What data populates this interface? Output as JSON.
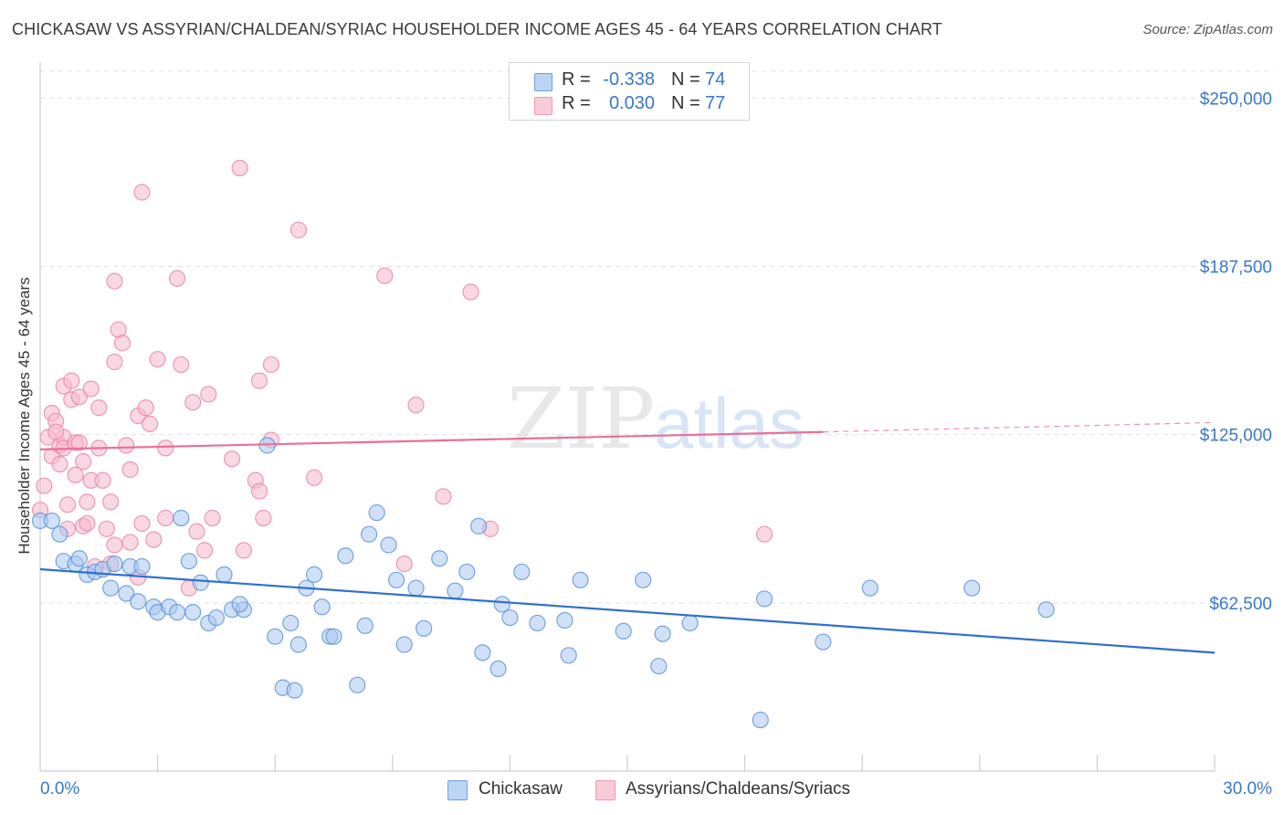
{
  "title": "CHICKASAW VS ASSYRIAN/CHALDEAN/SYRIAC HOUSEHOLDER INCOME AGES 45 - 64 YEARS CORRELATION CHART",
  "source": "Source: ZipAtlas.com",
  "watermark": {
    "zip": "ZIP",
    "atlas": "atlas"
  },
  "legend_stats": [
    {
      "r_label": "R =",
      "r_value": "-0.338",
      "n_label": "N =",
      "n_value": "74",
      "color": "#a9c8f0"
    },
    {
      "r_label": "R =",
      "r_value": "0.030",
      "n_label": "N =",
      "n_value": "77",
      "color": "#f6b8cb"
    }
  ],
  "bottom_legend": [
    {
      "label": "Chickasaw",
      "color": "#a9c8f0"
    },
    {
      "label": "Assyrians/Chaldeans/Syriacs",
      "color": "#f6b8cb"
    }
  ],
  "chart_data": {
    "type": "scatter",
    "title": "CHICKASAW VS ASSYRIAN/CHALDEAN/SYRIAC HOUSEHOLDER INCOME AGES 45 - 64 YEARS CORRELATION CHART",
    "xlabel": "",
    "ylabel": "Householder Income Ages 45 - 64 years",
    "xlim": [
      0,
      30
    ],
    "ylim": [
      0,
      262000
    ],
    "x_tick_labels": [
      "0.0%",
      "30.0%"
    ],
    "y_ticks": [
      62500,
      125000,
      187500,
      250000
    ],
    "y_tick_labels": [
      "$62,500",
      "$125,000",
      "$187,500",
      "$250,000"
    ],
    "grid": true,
    "colors": {
      "blue_fill": "#a9c8f0",
      "blue_stroke": "#5f95d8",
      "blue_line": "#2f6fcc",
      "pink_fill": "#f6b8cb",
      "pink_stroke": "#e88aa6",
      "pink_line": "#e8709a",
      "tick_text": "#3a78c9"
    },
    "series": [
      {
        "name": "Chickasaw",
        "color": "#a9c8f0",
        "trend": {
          "x": [
            0,
            30
          ],
          "y": [
            75000,
            44000
          ]
        },
        "points": [
          [
            0.0,
            93000
          ],
          [
            0.3,
            93000
          ],
          [
            0.5,
            88000
          ],
          [
            0.6,
            78000
          ],
          [
            0.9,
            77000
          ],
          [
            1.0,
            79000
          ],
          [
            1.2,
            73000
          ],
          [
            1.4,
            74000
          ],
          [
            1.6,
            75000
          ],
          [
            1.9,
            77000
          ],
          [
            1.8,
            68000
          ],
          [
            2.2,
            66000
          ],
          [
            2.3,
            76000
          ],
          [
            2.6,
            76000
          ],
          [
            2.5,
            63000
          ],
          [
            2.9,
            61000
          ],
          [
            3.0,
            59000
          ],
          [
            3.3,
            61000
          ],
          [
            3.5,
            59000
          ],
          [
            3.6,
            94000
          ],
          [
            3.8,
            78000
          ],
          [
            3.9,
            59000
          ],
          [
            4.1,
            70000
          ],
          [
            4.3,
            55000
          ],
          [
            4.5,
            57000
          ],
          [
            4.7,
            73000
          ],
          [
            4.9,
            60000
          ],
          [
            5.2,
            60000
          ],
          [
            5.1,
            62000
          ],
          [
            5.8,
            121000
          ],
          [
            6.0,
            50000
          ],
          [
            6.2,
            31000
          ],
          [
            6.4,
            55000
          ],
          [
            6.5,
            30000
          ],
          [
            6.6,
            47000
          ],
          [
            6.8,
            68000
          ],
          [
            7.0,
            73000
          ],
          [
            7.2,
            61000
          ],
          [
            7.4,
            50000
          ],
          [
            7.5,
            50000
          ],
          [
            7.8,
            80000
          ],
          [
            8.1,
            32000
          ],
          [
            8.3,
            54000
          ],
          [
            8.4,
            88000
          ],
          [
            8.6,
            96000
          ],
          [
            8.9,
            84000
          ],
          [
            9.1,
            71000
          ],
          [
            9.3,
            47000
          ],
          [
            9.6,
            68000
          ],
          [
            9.8,
            53000
          ],
          [
            10.2,
            79000
          ],
          [
            10.6,
            67000
          ],
          [
            10.9,
            74000
          ],
          [
            11.2,
            91000
          ],
          [
            11.3,
            44000
          ],
          [
            11.7,
            38000
          ],
          [
            11.8,
            62000
          ],
          [
            12.0,
            57000
          ],
          [
            12.3,
            74000
          ],
          [
            12.7,
            55000
          ],
          [
            13.4,
            56000
          ],
          [
            13.5,
            43000
          ],
          [
            13.8,
            71000
          ],
          [
            14.9,
            52000
          ],
          [
            15.4,
            71000
          ],
          [
            15.9,
            51000
          ],
          [
            15.8,
            39000
          ],
          [
            16.6,
            55000
          ],
          [
            18.5,
            64000
          ],
          [
            18.4,
            19000
          ],
          [
            20.0,
            48000
          ],
          [
            21.2,
            68000
          ],
          [
            23.8,
            68000
          ],
          [
            25.7,
            60000
          ]
        ]
      },
      {
        "name": "Assyrians/Chaldeans/Syriacs",
        "color": "#f6b8cb",
        "trend": {
          "x": [
            0,
            20
          ],
          "y": [
            119500,
            126000
          ]
        },
        "trend_dashed": {
          "x": [
            20,
            30
          ],
          "y": [
            126000,
            129500
          ]
        },
        "points": [
          [
            0.0,
            97000
          ],
          [
            0.1,
            106000
          ],
          [
            0.2,
            124000
          ],
          [
            0.3,
            117000
          ],
          [
            0.3,
            133000
          ],
          [
            0.4,
            130000
          ],
          [
            0.5,
            114000
          ],
          [
            0.5,
            121000
          ],
          [
            0.6,
            143000
          ],
          [
            0.6,
            124000
          ],
          [
            0.6,
            120000
          ],
          [
            0.7,
            99000
          ],
          [
            0.7,
            90000
          ],
          [
            0.8,
            138000
          ],
          [
            0.8,
            145000
          ],
          [
            0.9,
            110000
          ],
          [
            0.9,
            122000
          ],
          [
            1.0,
            139000
          ],
          [
            1.0,
            122000
          ],
          [
            1.1,
            91000
          ],
          [
            1.1,
            115000
          ],
          [
            1.2,
            100000
          ],
          [
            1.2,
            92000
          ],
          [
            1.3,
            108000
          ],
          [
            1.3,
            142000
          ],
          [
            1.4,
            76000
          ],
          [
            1.5,
            135000
          ],
          [
            1.5,
            120000
          ],
          [
            1.6,
            108000
          ],
          [
            1.7,
            90000
          ],
          [
            1.8,
            77000
          ],
          [
            1.8,
            100000
          ],
          [
            1.9,
            182000
          ],
          [
            1.9,
            84000
          ],
          [
            1.9,
            152000
          ],
          [
            2.0,
            164000
          ],
          [
            2.1,
            159000
          ],
          [
            2.2,
            121000
          ],
          [
            2.3,
            112000
          ],
          [
            2.3,
            85000
          ],
          [
            2.5,
            72000
          ],
          [
            2.5,
            132000
          ],
          [
            2.6,
            92000
          ],
          [
            2.6,
            215000
          ],
          [
            2.7,
            135000
          ],
          [
            2.8,
            129000
          ],
          [
            2.9,
            86000
          ],
          [
            3.0,
            153000
          ],
          [
            3.2,
            120000
          ],
          [
            3.2,
            94000
          ],
          [
            3.5,
            183000
          ],
          [
            3.6,
            151000
          ],
          [
            3.8,
            68000
          ],
          [
            3.9,
            137000
          ],
          [
            4.0,
            89000
          ],
          [
            4.2,
            82000
          ],
          [
            4.3,
            140000
          ],
          [
            4.4,
            94000
          ],
          [
            4.9,
            116000
          ],
          [
            5.1,
            224000
          ],
          [
            5.2,
            82000
          ],
          [
            5.5,
            108000
          ],
          [
            5.6,
            104000
          ],
          [
            5.6,
            145000
          ],
          [
            5.7,
            94000
          ],
          [
            5.9,
            151000
          ],
          [
            5.9,
            123000
          ],
          [
            6.6,
            201000
          ],
          [
            7.0,
            109000
          ],
          [
            8.8,
            184000
          ],
          [
            9.3,
            77000
          ],
          [
            9.6,
            136000
          ],
          [
            10.3,
            102000
          ],
          [
            11.0,
            178000
          ],
          [
            11.5,
            90000
          ],
          [
            18.5,
            88000
          ],
          [
            0.4,
            126000
          ]
        ]
      }
    ]
  }
}
